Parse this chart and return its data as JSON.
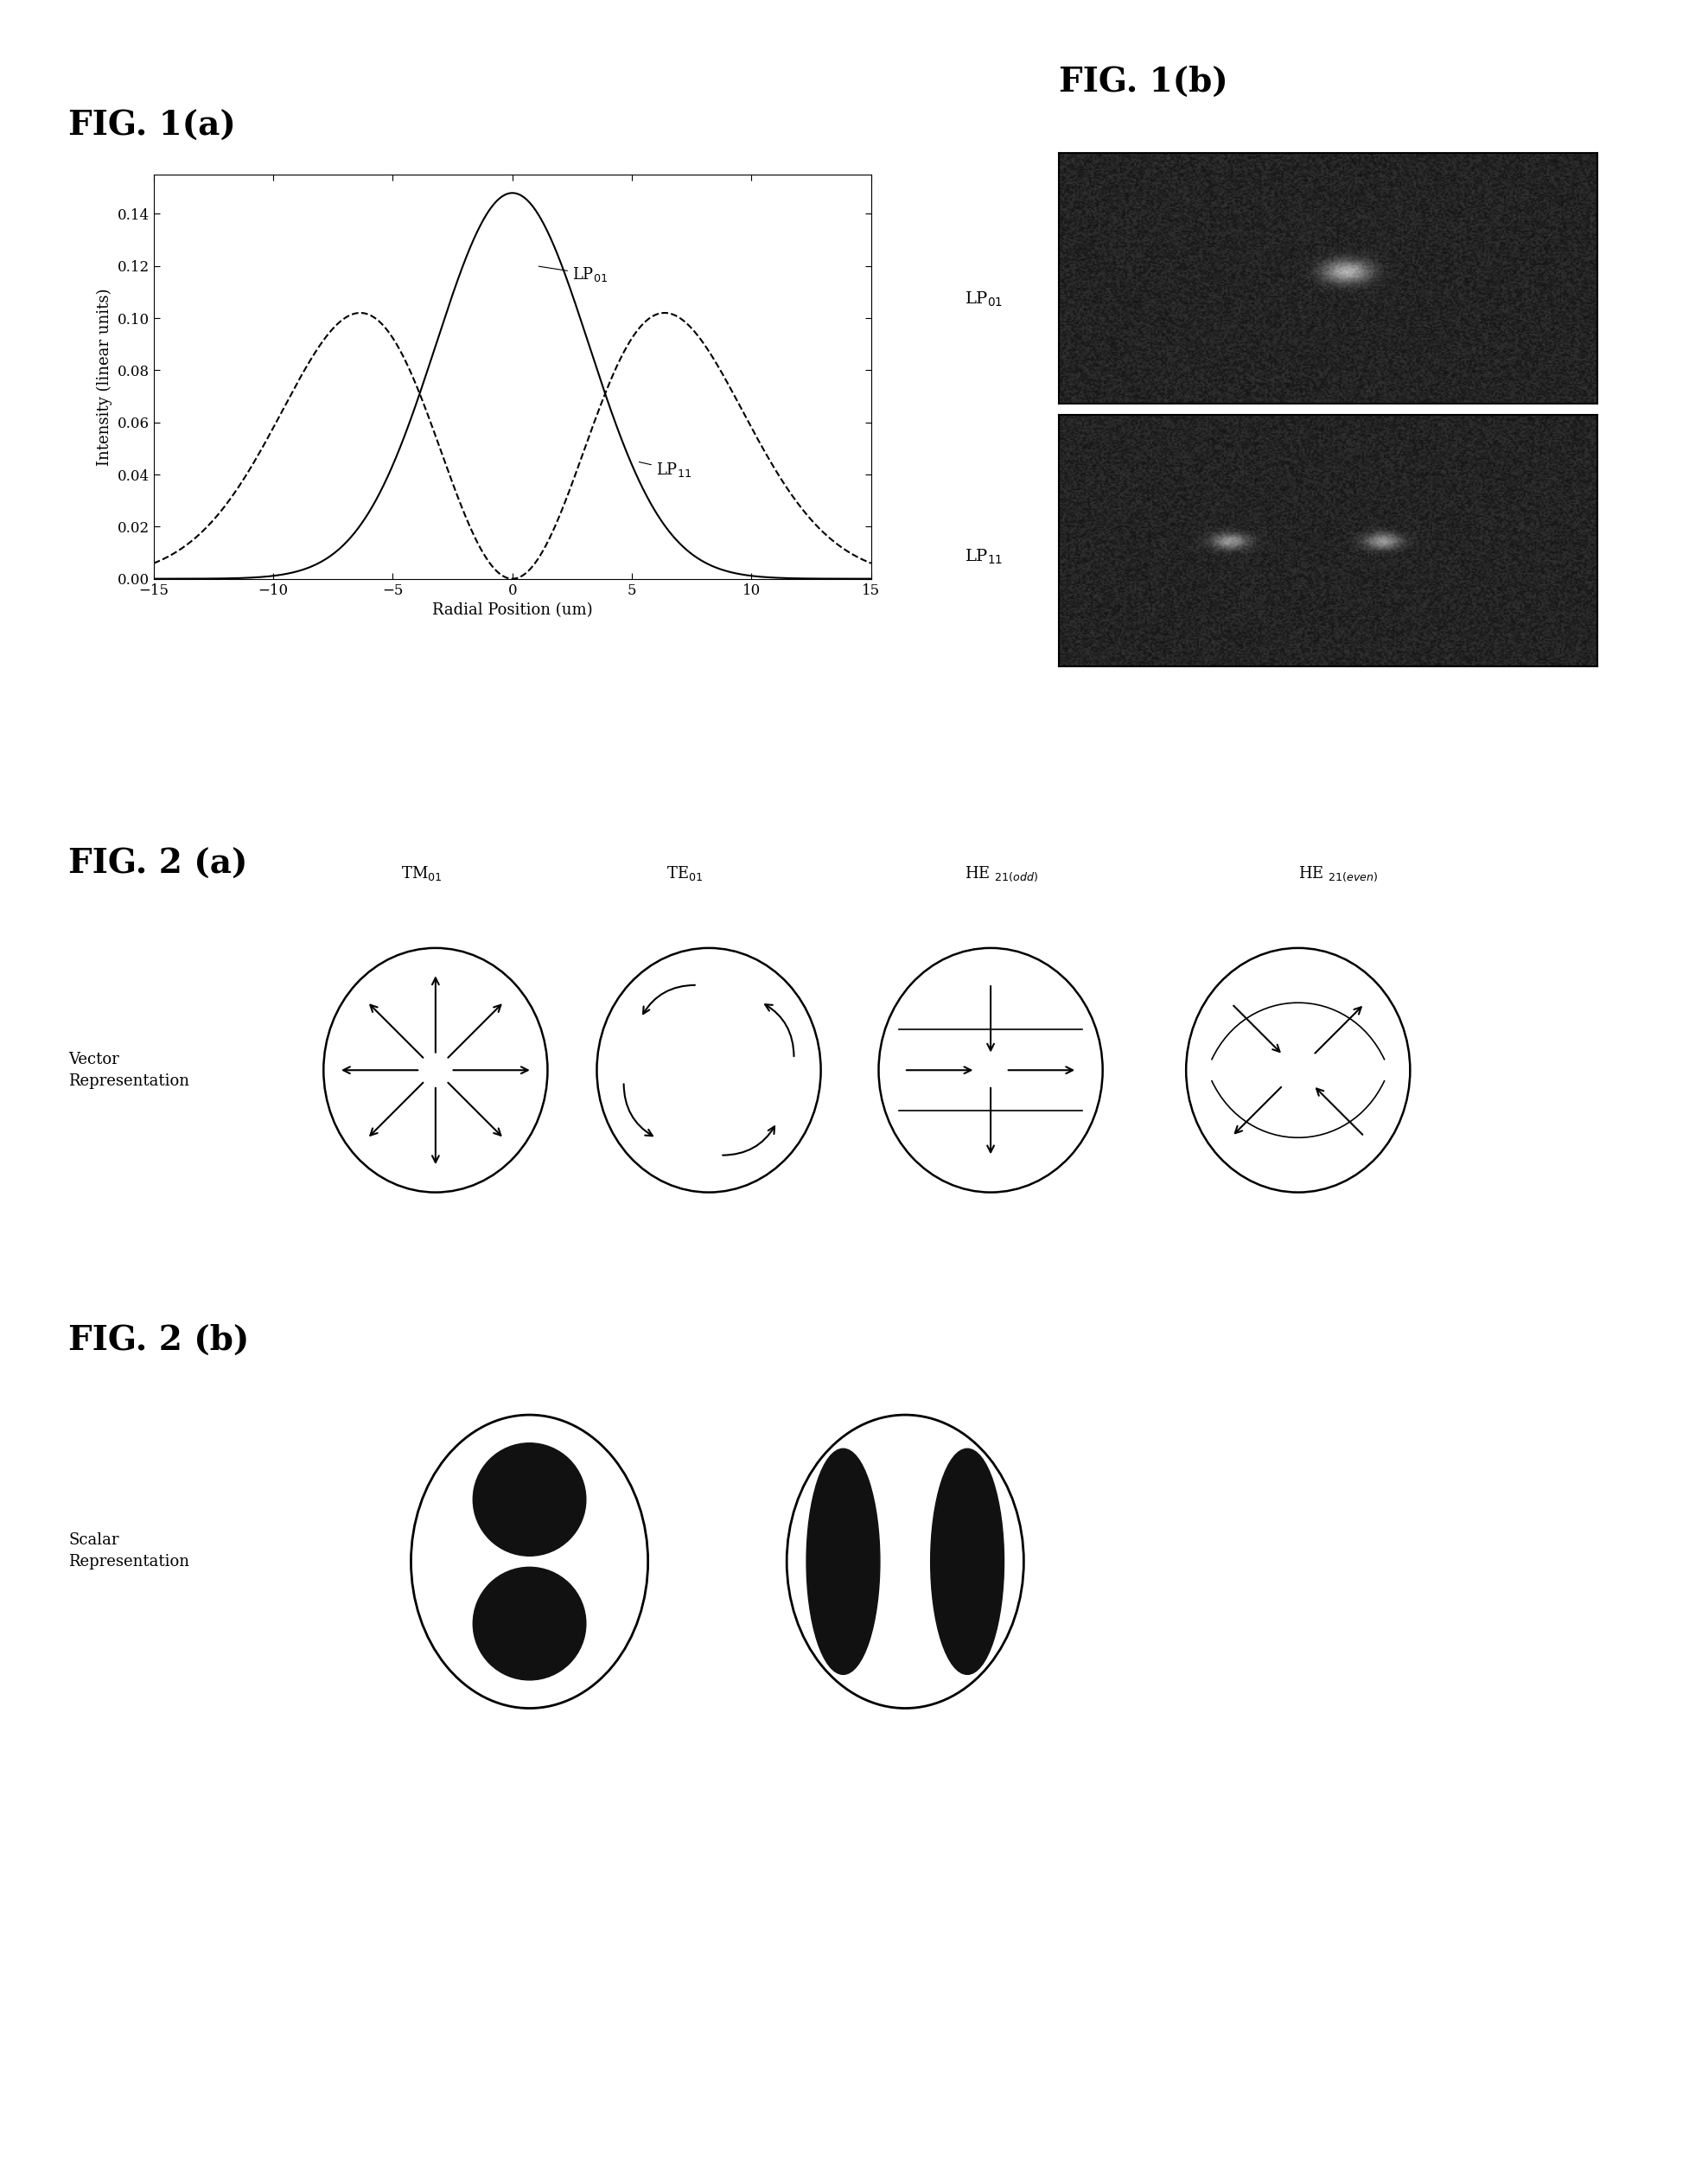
{
  "fig_width": 19.76,
  "fig_height": 25.27,
  "bg_color": "#ffffff",
  "fig1a_title": "FIG. 1(a)",
  "fig1b_title": "FIG. 1(b)",
  "fig2a_title": "FIG. 2 (a)",
  "fig2b_title": "FIG. 2 (b)",
  "plot_xlabel": "Radial Position (um)",
  "plot_ylabel": "Intensity (linear units)",
  "xlim": [
    -15,
    15
  ],
  "ylim": [
    0.0,
    0.155
  ],
  "yticks": [
    0.0,
    0.02,
    0.04,
    0.06,
    0.08,
    0.1,
    0.12,
    0.14
  ],
  "xticks": [
    -15,
    -10,
    -5,
    0,
    5,
    10,
    15
  ],
  "lp01_sigma": 3.2,
  "lp01_amplitude": 0.148,
  "lp11_sigma": 4.5,
  "lp11_amplitude": 0.051
}
